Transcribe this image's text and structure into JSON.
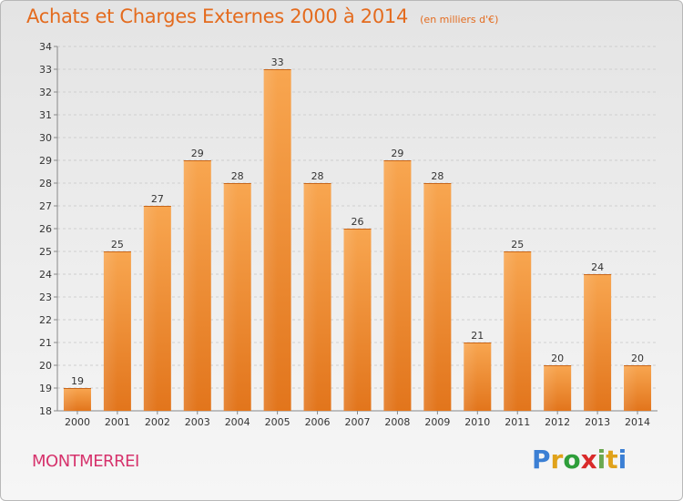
{
  "header": {
    "title": "Achats et Charges Externes 2000 à 2014",
    "subtitle": "(en milliers d'€)"
  },
  "footer": {
    "commune": "MONTMERREI",
    "logo_text": "Proxiti"
  },
  "colors": {
    "accent": "#e46b1e",
    "bar_light": "#f7a54e",
    "bar_dark": "#e07a1f",
    "commune": "#d6336c"
  },
  "chart_data": {
    "type": "bar",
    "title": "Achats et Charges Externes 2000 à 2014",
    "subtitle": "(en milliers d'€)",
    "xlabel": "",
    "ylabel": "",
    "categories": [
      "2000",
      "2001",
      "2002",
      "2003",
      "2004",
      "2005",
      "2006",
      "2007",
      "2008",
      "2009",
      "2010",
      "2011",
      "2012",
      "2013",
      "2014"
    ],
    "values": [
      19,
      25,
      27,
      29,
      28,
      33,
      28,
      26,
      29,
      28,
      21,
      25,
      20,
      24,
      20
    ],
    "data_labels": [
      "19",
      "25",
      "27",
      "29",
      "28",
      "33",
      "28",
      "26",
      "29",
      "28",
      "21",
      "25",
      "20",
      "24",
      "20"
    ],
    "ylim": [
      18,
      34
    ],
    "yticks": [
      "18",
      "19",
      "20",
      "21",
      "22",
      "23",
      "24",
      "25",
      "26",
      "27",
      "28",
      "29",
      "30",
      "31",
      "32",
      "33",
      "34"
    ],
    "grid": true,
    "legend": "none"
  }
}
